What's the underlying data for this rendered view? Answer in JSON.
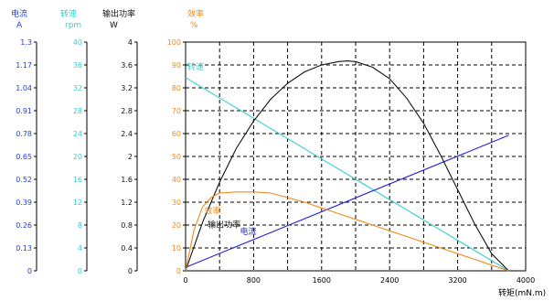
{
  "chart_data": {
    "type": "line",
    "xlabel": "转矩(mN.m)",
    "x_ticks": [
      0,
      800,
      1600,
      2400,
      3200,
      4000
    ],
    "xlim": [
      0,
      4000
    ],
    "grid": true,
    "axes": [
      {
        "name": "电流",
        "unit": "A",
        "color": "#1f3fd6",
        "min": 0,
        "max": 1.3,
        "ticks": [
          "0",
          "0.13",
          "0.26",
          "0.39",
          "0.52",
          "0.65",
          "0.78",
          "0.91",
          "1.04",
          "1.17",
          "1.3"
        ]
      },
      {
        "name": "转速",
        "unit": "rpm",
        "color": "#35d0d0",
        "min": 0,
        "max": 40,
        "ticks": [
          "0",
          "4",
          "8",
          "12",
          "16",
          "20",
          "24",
          "28",
          "32",
          "36",
          "40"
        ]
      },
      {
        "name": "输出功率",
        "unit": "W",
        "color": "#111111",
        "min": 0,
        "max": 4,
        "ticks": [
          "0",
          "0.4",
          "0.8",
          "1.2",
          "1.6",
          "2",
          "2.4",
          "2.8",
          "3.2",
          "3.6",
          "4"
        ]
      },
      {
        "name": "效率",
        "unit": "%",
        "color": "#f08a1c",
        "min": 0,
        "max": 100,
        "ticks": [
          "0",
          "10",
          "20",
          "30",
          "40",
          "50",
          "60",
          "70",
          "80",
          "90",
          "100"
        ]
      }
    ],
    "series": [
      {
        "name": "转速",
        "axis": 1,
        "color": "#35d0d0",
        "label_at": {
          "x": 20,
          "y": 88
        },
        "points": [
          [
            0,
            33.8
          ],
          [
            3800,
            0
          ]
        ]
      },
      {
        "name": "电流",
        "axis": 0,
        "color": "#2222dd",
        "label_at": {
          "x": 640,
          "y": 16
        },
        "points": [
          [
            0,
            0.02
          ],
          [
            3800,
            0.77
          ]
        ]
      },
      {
        "name": "输出功率",
        "axis": 2,
        "color": "#111111",
        "label_at": {
          "x": 260,
          "y": 19
        },
        "points": [
          [
            0,
            0
          ],
          [
            200,
            0.85
          ],
          [
            400,
            1.55
          ],
          [
            600,
            2.15
          ],
          [
            800,
            2.62
          ],
          [
            1000,
            3.0
          ],
          [
            1200,
            3.28
          ],
          [
            1400,
            3.48
          ],
          [
            1600,
            3.6
          ],
          [
            1800,
            3.66
          ],
          [
            1900,
            3.67
          ],
          [
            2000,
            3.66
          ],
          [
            2200,
            3.56
          ],
          [
            2400,
            3.36
          ],
          [
            2600,
            3.02
          ],
          [
            2800,
            2.58
          ],
          [
            3000,
            2.02
          ],
          [
            3200,
            1.42
          ],
          [
            3400,
            0.82
          ],
          [
            3600,
            0.3
          ],
          [
            3800,
            0
          ]
        ]
      },
      {
        "name": "效率",
        "axis": 3,
        "color": "#f08a1c",
        "label_at": {
          "x": 220,
          "y": 25
        },
        "points": [
          [
            0,
            0
          ],
          [
            100,
            18
          ],
          [
            200,
            28
          ],
          [
            300,
            32
          ],
          [
            400,
            34
          ],
          [
            600,
            34.5
          ],
          [
            800,
            34.5
          ],
          [
            1000,
            34
          ],
          [
            1200,
            32
          ],
          [
            1400,
            30
          ],
          [
            1600,
            27.5
          ],
          [
            1800,
            25
          ],
          [
            2000,
            22.5
          ],
          [
            2200,
            20
          ],
          [
            2400,
            17.5
          ],
          [
            2600,
            15
          ],
          [
            2800,
            12.5
          ],
          [
            3000,
            10
          ],
          [
            3200,
            7.5
          ],
          [
            3400,
            5
          ],
          [
            3600,
            2.5
          ],
          [
            3800,
            0
          ]
        ]
      }
    ]
  }
}
